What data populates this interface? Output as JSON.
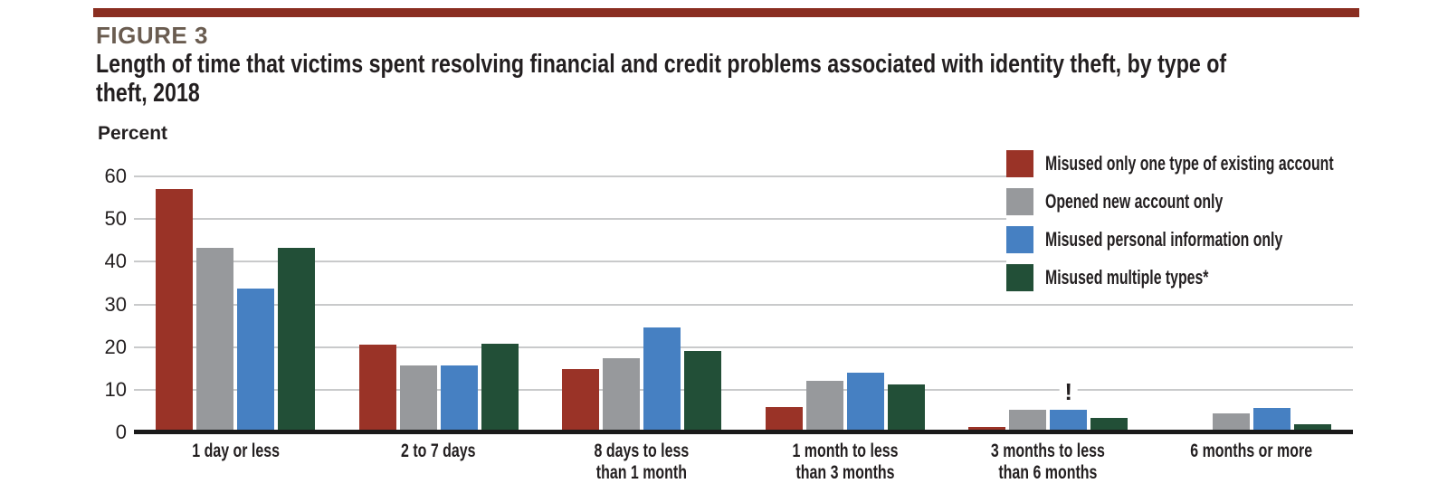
{
  "page": {
    "figure_label": "FIGURE 3",
    "title": "Length of time that victims spent resolving financial and credit problems associated with identity theft, by type of\ntheft, 2018",
    "stripe_color": "#8a2e21",
    "figure_label_color": "#6a5c50"
  },
  "style": {
    "gridline_color": "#c9cacb",
    "baseline_color": "#1a1a1a",
    "text_color": "#231f20",
    "background": "#ffffff"
  },
  "chart_data": {
    "type": "bar",
    "title": "FIGURE 3",
    "subtitle": "Length of time that victims spent resolving financial and credit problems associated with identity theft, by type of theft, 2018",
    "ylabel": "Percent",
    "xlabel": "",
    "ylim": [
      0,
      60
    ],
    "yticks": [
      0,
      10,
      20,
      30,
      40,
      50,
      60
    ],
    "grid": true,
    "legend_position": "upper right",
    "categories": [
      "1 day or less",
      "2 to 7 days",
      "8 days to less\nthan 1 month",
      "1 month to less\nthan 3 months",
      "3 months to less\nthan 6 months",
      "6 months or more"
    ],
    "series": [
      {
        "name": "Misused only one type of existing account",
        "color": "#9a3327",
        "values": [
          57.0,
          20.5,
          14.8,
          6.0,
          1.2,
          0.5
        ]
      },
      {
        "name": "Opened new account only",
        "color": "#97999c",
        "values": [
          43.3,
          15.8,
          17.4,
          12.2,
          5.3,
          4.4
        ]
      },
      {
        "name": "Misused personal information only",
        "color": "#4680c2",
        "values": [
          33.7,
          15.6,
          24.7,
          13.9,
          5.4,
          5.8
        ]
      },
      {
        "name": "Misused multiple types*",
        "color": "#224f37",
        "values": [
          43.2,
          20.7,
          19.0,
          11.3,
          3.5,
          2.0
        ]
      }
    ],
    "annotations": [
      {
        "text": "!",
        "series_index": 2,
        "category_index": 4
      }
    ]
  }
}
